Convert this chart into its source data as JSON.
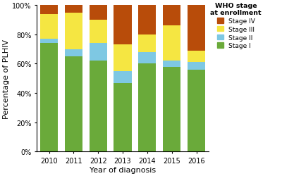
{
  "years": [
    "2010",
    "2011",
    "2012",
    "2013",
    "2014",
    "2015",
    "2016"
  ],
  "stage_I": [
    74,
    65,
    62,
    47,
    60,
    58,
    56
  ],
  "stage_II": [
    3,
    5,
    12,
    8,
    8,
    4,
    5
  ],
  "stage_III": [
    17,
    25,
    16,
    18,
    12,
    24,
    8
  ],
  "stage_IV": [
    6,
    5,
    10,
    27,
    20,
    14,
    31
  ],
  "colors": {
    "Stage I": "#6aaa3a",
    "Stage II": "#7ec8e3",
    "Stage III": "#f5e642",
    "Stage IV": "#b84c0a"
  },
  "xlabel": "Year of diagnosis",
  "ylabel": "Percentage of PLHIV",
  "legend_title": "WHO stage\nat enrollment",
  "yticks": [
    0,
    20,
    40,
    60,
    80,
    100
  ],
  "yticklabels": [
    "0%",
    "20%",
    "40%",
    "60%",
    "80%",
    "100%"
  ],
  "bg_color": "#ffffff",
  "bar_width": 0.72,
  "figsize": [
    4.0,
    2.51
  ],
  "dpi": 100
}
